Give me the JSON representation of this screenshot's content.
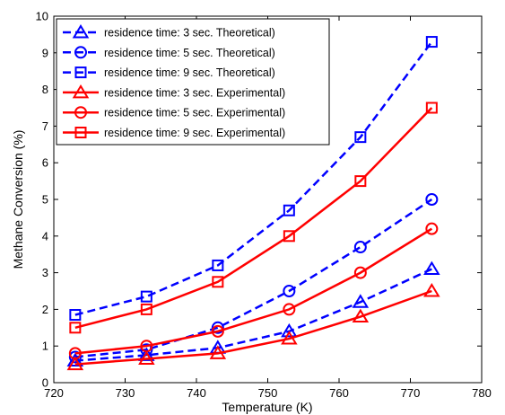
{
  "chart_data": {
    "type": "line",
    "title": "",
    "xlabel": "Temperature (K)",
    "ylabel": "Methane Conversion (%)",
    "xlim": [
      720,
      780
    ],
    "ylim": [
      0,
      10
    ],
    "xticks": [
      720,
      730,
      740,
      750,
      760,
      770,
      780
    ],
    "yticks": [
      0,
      1,
      2,
      3,
      4,
      5,
      6,
      7,
      8,
      9,
      10
    ],
    "x": [
      723,
      733,
      743,
      753,
      763,
      773
    ],
    "grid": false,
    "legend_position": "top-left",
    "series": [
      {
        "name": "residence time: 3 sec. Theoretical)",
        "marker": "triangle",
        "dashed": true,
        "color": "#0000ff",
        "values": [
          0.6,
          0.75,
          0.95,
          1.4,
          2.2,
          3.1
        ]
      },
      {
        "name": "residence time: 5 sec. Theoretical)",
        "marker": "circle",
        "dashed": true,
        "color": "#0000ff",
        "values": [
          0.7,
          0.9,
          1.5,
          2.5,
          3.7,
          5.0
        ]
      },
      {
        "name": "residence time: 9 sec. Theoretical)",
        "marker": "square",
        "dashed": true,
        "color": "#0000ff",
        "values": [
          1.85,
          2.35,
          3.2,
          4.7,
          6.7,
          9.3
        ]
      },
      {
        "name": "residence time: 3 sec. Experimental)",
        "marker": "triangle",
        "dashed": false,
        "color": "#ff0000",
        "values": [
          0.5,
          0.65,
          0.8,
          1.2,
          1.8,
          2.5
        ]
      },
      {
        "name": "residence time: 5 sec. Experimental)",
        "marker": "circle",
        "dashed": false,
        "color": "#ff0000",
        "values": [
          0.8,
          1.0,
          1.4,
          2.0,
          3.0,
          4.2
        ]
      },
      {
        "name": "residence time: 9 sec. Experimental)",
        "marker": "square",
        "dashed": false,
        "color": "#ff0000",
        "values": [
          1.5,
          2.0,
          2.75,
          4.0,
          5.5,
          7.5
        ]
      }
    ]
  }
}
